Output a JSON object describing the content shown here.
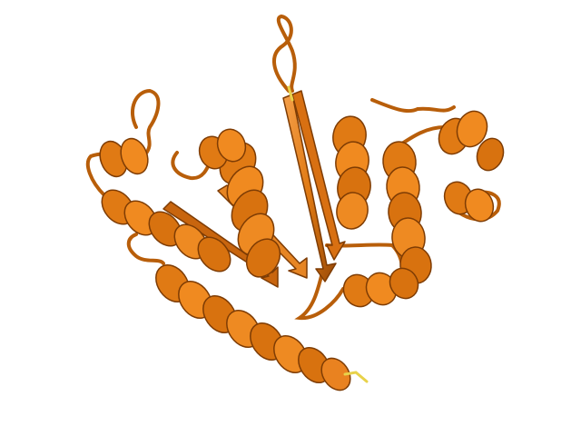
{
  "image": {
    "subject": "protein-ribbon-cartoon",
    "background_color": "#ffffff",
    "ribbon_color": "#e07a14",
    "ribbon_dark": "#9a4a06",
    "ribbon_light": "#f5a04a",
    "terminus_color": "#e8d24a"
  }
}
